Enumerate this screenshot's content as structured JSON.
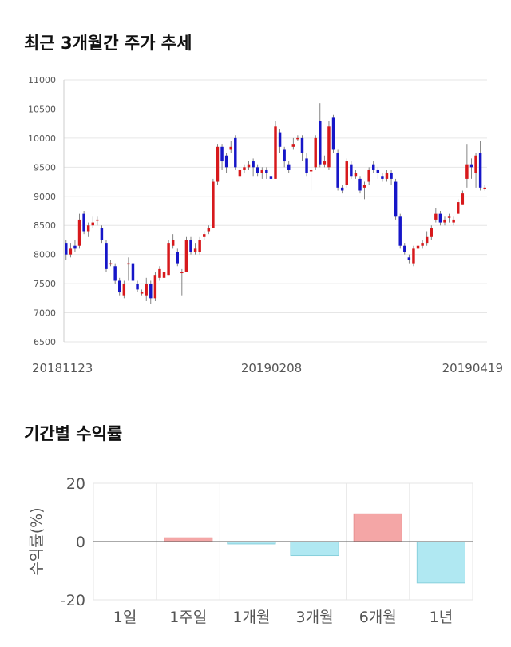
{
  "sections": {
    "price_title": "최근 3개월간 주가 추세",
    "return_title": "기간별 수익률"
  },
  "colors": {
    "up": "#d7191c",
    "down": "#1616c8",
    "positive_bar": "#f4a6a6",
    "negative_bar": "#b0e8f2",
    "grid": "#e6e6e6"
  },
  "chart_data": [
    {
      "type": "candlestick",
      "title": "",
      "ylim": [
        6500,
        11000
      ],
      "y_ticks": [
        "6500",
        "7000",
        "7500",
        "8000",
        "8500",
        "9000",
        "9500",
        "10000",
        "10500",
        "11000"
      ],
      "x_ticks": [
        "20181123",
        "20190208",
        "20190419"
      ],
      "grid": true,
      "candles": [
        [
          8200,
          8000,
          8250,
          7900
        ],
        [
          8000,
          8100,
          8200,
          7950
        ],
        [
          8150,
          8100,
          8250,
          8050
        ],
        [
          8150,
          8600,
          8700,
          8100
        ],
        [
          8700,
          8400,
          8750,
          8350
        ],
        [
          8400,
          8500,
          8550,
          8300
        ],
        [
          8500,
          8550,
          8650,
          8450
        ],
        [
          8600,
          8600,
          8650,
          8500
        ],
        [
          8450,
          8250,
          8500,
          8200
        ],
        [
          8200,
          7750,
          8250,
          7700
        ],
        [
          7850,
          7850,
          7900,
          7800
        ],
        [
          7800,
          7550,
          7850,
          7500
        ],
        [
          7550,
          7350,
          7600,
          7300
        ],
        [
          7300,
          7500,
          7550,
          7250
        ],
        [
          7850,
          7850,
          7950,
          7550
        ],
        [
          7850,
          7550,
          7900,
          7500
        ],
        [
          7500,
          7400,
          7550,
          7350
        ],
        [
          7350,
          7350,
          7400,
          7300
        ],
        [
          7300,
          7500,
          7600,
          7200
        ],
        [
          7500,
          7250,
          7550,
          7150
        ],
        [
          7250,
          7650,
          7700,
          7200
        ],
        [
          7600,
          7750,
          7800,
          7550
        ],
        [
          7600,
          7700,
          7750,
          7550
        ],
        [
          7650,
          8200,
          8250,
          7650
        ],
        [
          8150,
          8250,
          8350,
          8100
        ],
        [
          8050,
          7850,
          8100,
          7800
        ],
        [
          7700,
          7700,
          7750,
          7300
        ],
        [
          7700,
          8250,
          8300,
          7700
        ],
        [
          8250,
          8050,
          8300,
          8000
        ],
        [
          8050,
          8100,
          8200,
          8000
        ],
        [
          8050,
          8250,
          8300,
          8000
        ],
        [
          8300,
          8350,
          8400,
          8250
        ],
        [
          8400,
          8450,
          8500,
          8350
        ],
        [
          8450,
          9250,
          9300,
          8450
        ],
        [
          9250,
          9850,
          9900,
          9200
        ],
        [
          9850,
          9600,
          9900,
          9450
        ],
        [
          9700,
          9500,
          9750,
          9400
        ],
        [
          9800,
          9850,
          9950,
          9750
        ],
        [
          10000,
          9500,
          10050,
          9450
        ],
        [
          9350,
          9450,
          9500,
          9300
        ],
        [
          9450,
          9500,
          9550,
          9400
        ],
        [
          9500,
          9550,
          9600,
          9450
        ],
        [
          9600,
          9500,
          9650,
          9350
        ],
        [
          9500,
          9400,
          9550,
          9350
        ],
        [
          9400,
          9450,
          9500,
          9300
        ],
        [
          9450,
          9400,
          9500,
          9300
        ],
        [
          9350,
          9300,
          9400,
          9200
        ],
        [
          9300,
          10200,
          10300,
          9300
        ],
        [
          10100,
          9850,
          10150,
          9750
        ],
        [
          9800,
          9600,
          9850,
          9500
        ],
        [
          9550,
          9450,
          9600,
          9400
        ],
        [
          9850,
          9900,
          10000,
          9800
        ],
        [
          10000,
          10000,
          10050,
          9950
        ],
        [
          10000,
          9750,
          10050,
          9600
        ],
        [
          9650,
          9400,
          9750,
          9350
        ],
        [
          9450,
          9450,
          9500,
          9100
        ],
        [
          9500,
          10000,
          10050,
          9450
        ],
        [
          10300,
          9550,
          10600,
          9500
        ],
        [
          9550,
          9600,
          9700,
          9500
        ],
        [
          9500,
          10200,
          10300,
          9450
        ],
        [
          10350,
          9800,
          10400,
          9750
        ],
        [
          9750,
          9150,
          9800,
          9100
        ],
        [
          9150,
          9100,
          9200,
          9050
        ],
        [
          9200,
          9600,
          9650,
          9150
        ],
        [
          9550,
          9350,
          9600,
          9300
        ],
        [
          9350,
          9400,
          9450,
          9300
        ],
        [
          9300,
          9100,
          9350,
          9050
        ],
        [
          9150,
          9200,
          9250,
          8950
        ],
        [
          9250,
          9450,
          9500,
          9200
        ],
        [
          9550,
          9450,
          9600,
          9400
        ],
        [
          9450,
          9400,
          9500,
          9300
        ],
        [
          9350,
          9300,
          9400,
          9250
        ],
        [
          9300,
          9400,
          9450,
          9250
        ],
        [
          9400,
          9300,
          9450,
          9200
        ],
        [
          9250,
          8650,
          9300,
          8600
        ],
        [
          8650,
          8150,
          8700,
          8100
        ],
        [
          8150,
          8050,
          8200,
          8000
        ],
        [
          7950,
          7900,
          8000,
          7850
        ],
        [
          7850,
          8100,
          8150,
          7800
        ],
        [
          8100,
          8150,
          8200,
          8050
        ],
        [
          8150,
          8200,
          8250,
          8100
        ],
        [
          8200,
          8300,
          8400,
          8150
        ],
        [
          8300,
          8450,
          8500,
          8250
        ],
        [
          8600,
          8700,
          8800,
          8550
        ],
        [
          8700,
          8550,
          8750,
          8500
        ],
        [
          8550,
          8600,
          8650,
          8500
        ],
        [
          8650,
          8650,
          8700,
          8550
        ],
        [
          8550,
          8600,
          8650,
          8500
        ],
        [
          8700,
          8900,
          8950,
          8700
        ],
        [
          8850,
          9050,
          9100,
          8850
        ],
        [
          9300,
          9550,
          9900,
          9150
        ],
        [
          9550,
          9500,
          9650,
          9300
        ],
        [
          9400,
          9700,
          9750,
          9150
        ],
        [
          9750,
          9150,
          9950,
          9100
        ],
        [
          9150,
          9150,
          9200,
          9100
        ]
      ]
    },
    {
      "type": "bar",
      "title": "",
      "ylabel": "수익률(%)",
      "ylim": [
        -20,
        20
      ],
      "y_ticks": [
        "20",
        "0",
        "-20"
      ],
      "categories": [
        "1일",
        "1주일",
        "1개월",
        "3개월",
        "6개월",
        "1년"
      ],
      "values": [
        0,
        1.3,
        -0.8,
        -4.8,
        9.5,
        -14.2
      ],
      "grid": true
    }
  ]
}
